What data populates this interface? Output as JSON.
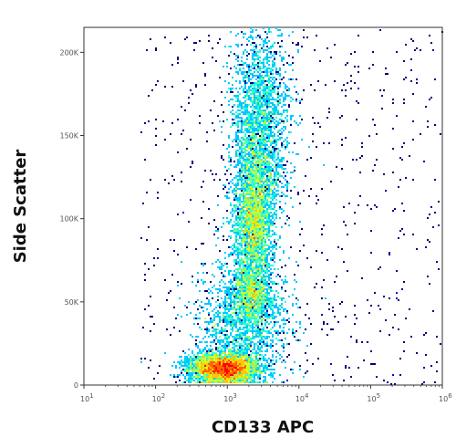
{
  "chart_data": {
    "type": "scatter",
    "subtype": "flow-cytometry-density-dot-plot",
    "title": "",
    "xlabel": "CD133 APC",
    "ylabel": "Side Scatter",
    "x_scale": "log",
    "xlim": [
      10,
      1000000
    ],
    "ylim": [
      0,
      215000
    ],
    "x_ticks": [
      {
        "value": 10,
        "base": "10",
        "exp": "1"
      },
      {
        "value": 100,
        "base": "10",
        "exp": "2"
      },
      {
        "value": 1000,
        "base": "10",
        "exp": "3"
      },
      {
        "value": 10000,
        "base": "10",
        "exp": "4"
      },
      {
        "value": 100000,
        "base": "10",
        "exp": "5"
      },
      {
        "value": 1000000,
        "base": "10",
        "exp": "6"
      }
    ],
    "y_ticks": [
      {
        "value": 0,
        "label": "0"
      },
      {
        "value": 50000,
        "label": "50K"
      },
      {
        "value": 100000,
        "label": "100K"
      },
      {
        "value": 150000,
        "label": "150K"
      },
      {
        "value": 200000,
        "label": "200K"
      }
    ],
    "populations": [
      {
        "x_center": 900,
        "y_center": 10000,
        "x_spread_decades": 0.24,
        "y_spread": 4500,
        "weight": 0.33
      },
      {
        "x_center": 2300,
        "y_center": 95000,
        "x_spread_decades": 0.13,
        "y_spread": 19000,
        "weight": 0.2
      },
      {
        "x_center": 2200,
        "y_center": 55000,
        "x_spread_decades": 0.12,
        "y_spread": 8000,
        "weight": 0.07
      },
      {
        "x_center": 2500,
        "y_center": 130000,
        "x_spread_decades": 0.16,
        "y_spread": 25000,
        "weight": 0.1
      },
      {
        "x_center": 1700,
        "y_center": 38000,
        "x_spread_decades": 0.3,
        "y_spread": 18000,
        "weight": 0.15
      },
      {
        "x_center": 3000,
        "y_center": 160000,
        "x_spread_decades": 0.2,
        "y_spread": 30000,
        "weight": 0.15
      }
    ],
    "density_colors": [
      "#00007f",
      "#0000ff",
      "#0063ff",
      "#00c8ff",
      "#2affd2",
      "#7fff7f",
      "#d2ff2a",
      "#ffc800",
      "#ff6300",
      "#ff0000"
    ],
    "grid": false,
    "legend": "none"
  }
}
